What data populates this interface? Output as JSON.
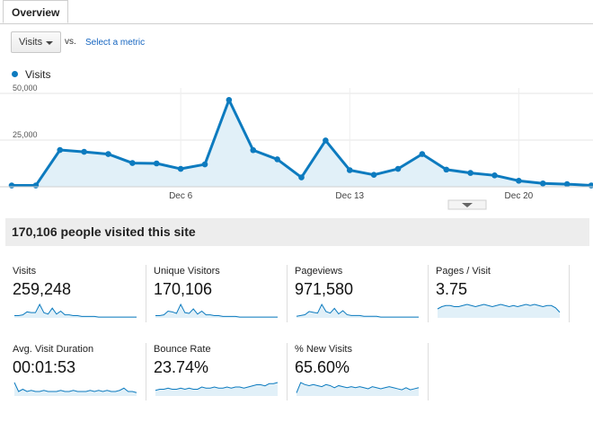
{
  "tabs": {
    "overview": "Overview"
  },
  "toolbar": {
    "metric": "Visits",
    "vs": "vs.",
    "select_metric": "Select a metric"
  },
  "legend": {
    "series": "Visits",
    "color": "#0d7bbf"
  },
  "chart_data": {
    "type": "area",
    "series": [
      {
        "name": "Visits",
        "values": [
          700,
          700,
          19700,
          18700,
          17500,
          12700,
          12500,
          9600,
          12000,
          46500,
          19600,
          14700,
          5000,
          24800,
          8900,
          6400,
          9600,
          17500,
          9200,
          7400,
          6100,
          3200,
          1800,
          1400,
          700
        ]
      }
    ],
    "x_ticks": [
      "Dec 6",
      "Dec 13",
      "Dec 20"
    ],
    "y_ticks": [
      "50,000",
      "25,000"
    ],
    "ylim": [
      0,
      50000
    ],
    "grid": true,
    "line_color": "#0d7bbf",
    "fill_color": "#e1f0f8"
  },
  "summary": {
    "headline": "170,106 people visited this site"
  },
  "metrics": [
    {
      "label": "Visits",
      "value": "259,248",
      "spark": [
        3,
        3,
        4,
        8,
        7,
        7,
        18,
        7,
        5,
        13,
        5,
        9,
        4,
        4,
        3,
        3,
        2,
        2,
        2,
        2,
        1,
        1,
        1,
        1,
        1,
        1,
        1,
        1,
        1,
        1
      ]
    },
    {
      "label": "Unique Visitors",
      "value": "170,106",
      "spark": [
        3,
        3,
        4,
        9,
        8,
        6,
        18,
        7,
        6,
        12,
        5,
        9,
        4,
        4,
        3,
        3,
        2,
        2,
        2,
        2,
        1,
        1,
        1,
        1,
        1,
        1,
        1,
        1,
        1,
        1
      ]
    },
    {
      "label": "Pageviews",
      "value": "971,580",
      "spark": [
        2,
        3,
        4,
        8,
        7,
        6,
        17,
        8,
        6,
        12,
        5,
        9,
        4,
        3,
        3,
        3,
        2,
        2,
        2,
        2,
        1,
        1,
        1,
        1,
        1,
        1,
        1,
        1,
        1,
        1
      ]
    },
    {
      "label": "Pages / Visit",
      "value": "3.75",
      "spark": [
        8,
        10,
        11,
        11,
        10,
        10,
        11,
        12,
        11,
        10,
        11,
        12,
        11,
        10,
        11,
        12,
        11,
        10,
        11,
        10,
        11,
        12,
        11,
        12,
        11,
        10,
        11,
        11,
        9,
        5
      ]
    },
    {
      "label": "Avg. Visit Duration",
      "value": "00:01:53",
      "spark": [
        12,
        4,
        6,
        4,
        5,
        4,
        4,
        5,
        4,
        4,
        4,
        5,
        4,
        4,
        5,
        4,
        4,
        4,
        5,
        4,
        5,
        4,
        5,
        4,
        4,
        5,
        7,
        4,
        4,
        3
      ]
    },
    {
      "label": "Bounce Rate",
      "value": "23.74%",
      "spark": [
        5,
        6,
        6,
        7,
        6,
        6,
        7,
        6,
        7,
        6,
        6,
        8,
        7,
        7,
        8,
        7,
        7,
        8,
        7,
        8,
        8,
        7,
        8,
        9,
        10,
        10,
        9,
        11,
        11,
        12
      ]
    },
    {
      "label": "% New Visits",
      "value": "65.60%",
      "spark": [
        3,
        13,
        11,
        10,
        11,
        10,
        9,
        11,
        10,
        8,
        10,
        9,
        8,
        9,
        8,
        9,
        8,
        7,
        9,
        8,
        7,
        8,
        9,
        8,
        7,
        6,
        8,
        6,
        7,
        8
      ]
    }
  ]
}
